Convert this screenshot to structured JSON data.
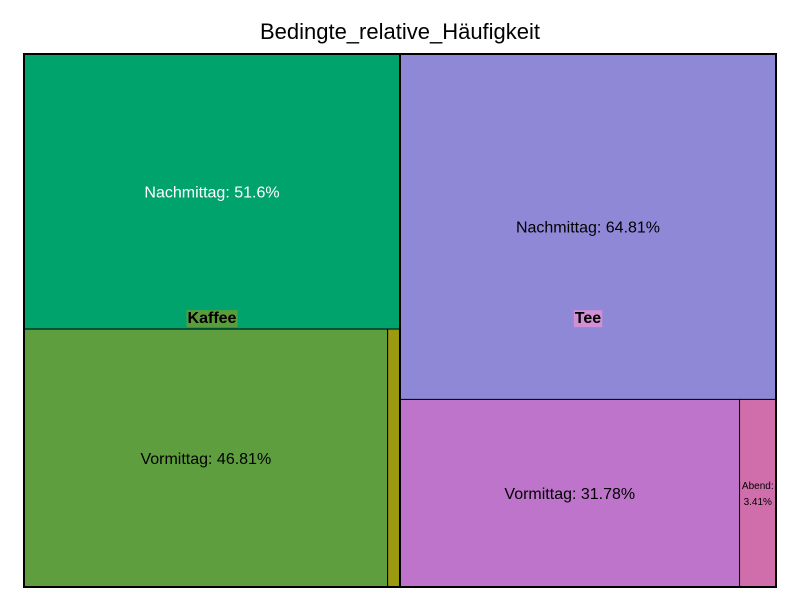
{
  "chart_data": {
    "type": "treemap",
    "title": "Bedingte_relative_Häufigkeit",
    "groups": [
      {
        "name": "Kaffee",
        "label_bg": "#5a9e3c",
        "share": 0.5,
        "cells": [
          {
            "label": "Nachmittag",
            "value": 51.6,
            "display": "Nachmittag: 51.6%",
            "color": "#00a36b",
            "text_color": "#ffffff"
          },
          {
            "label": "Vormittag",
            "value": 46.81,
            "display": "Vormittag: 46.81%",
            "color": "#5e9e3e",
            "text_color": "#000000"
          },
          {
            "label": "",
            "value": 1.59,
            "display": "",
            "color": "#9c9a10",
            "text_color": "#000000"
          }
        ]
      },
      {
        "name": "Tee",
        "label_bg": "#d18fd6",
        "share": 0.5,
        "cells": [
          {
            "label": "Nachmittag",
            "value": 64.81,
            "display": "Nachmittag: 64.81%",
            "color": "#8f88d6",
            "text_color": "#000000"
          },
          {
            "label": "Vormittag",
            "value": 31.78,
            "display": "Vormittag: 31.78%",
            "color": "#be74cb",
            "text_color": "#000000"
          },
          {
            "label": "Abend",
            "value": 3.41,
            "display": "Abend: 3.41%",
            "small_lines": [
              "Abend:",
              "3.41%"
            ],
            "color": "#d06eac",
            "text_color": "#000000"
          }
        ]
      }
    ]
  }
}
